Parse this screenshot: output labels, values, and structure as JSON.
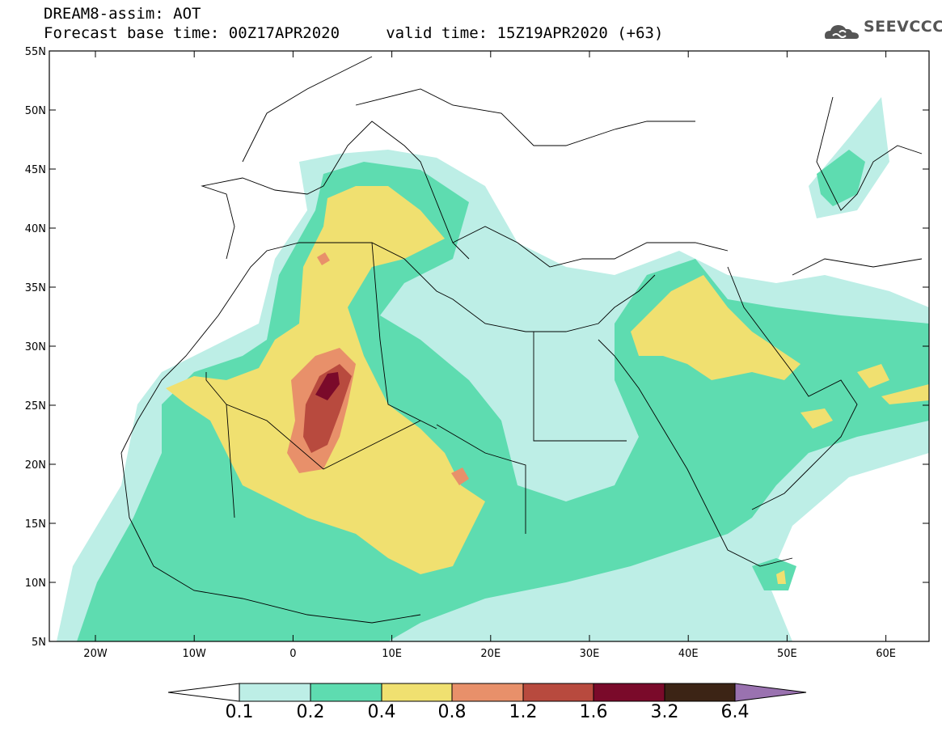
{
  "header": {
    "title_line1": "DREAM8-assim: AOT",
    "title_line2": "Forecast base time: 00Z17APR2020     valid time: 15Z19APR2020 (+63)",
    "logo_text": "SEEVCCC"
  },
  "map": {
    "lat_labels": [
      "55N",
      "50N",
      "45N",
      "40N",
      "35N",
      "30N",
      "25N",
      "20N",
      "15N",
      "10N",
      "5N"
    ],
    "lon_labels": [
      "20W",
      "10W",
      "0",
      "10E",
      "20E",
      "30E",
      "40E",
      "50E",
      "60E"
    ],
    "lat_range": [
      5,
      55
    ],
    "lon_range": [
      -25,
      65
    ],
    "colors": {
      "c01_02": "#bdeee6",
      "c02_04": "#5edcb0",
      "c04_08": "#f0e070",
      "c08_12": "#e8906a",
      "c12_16": "#b84a3e",
      "c16_32": "#7a0a2a",
      "c32_64": "#3c2415",
      "c64p": "#9a72b0"
    }
  },
  "colorbar": {
    "labels": [
      "0.1",
      "0.2",
      "0.4",
      "0.8",
      "1.2",
      "1.6",
      "3.2",
      "6.4"
    ]
  }
}
